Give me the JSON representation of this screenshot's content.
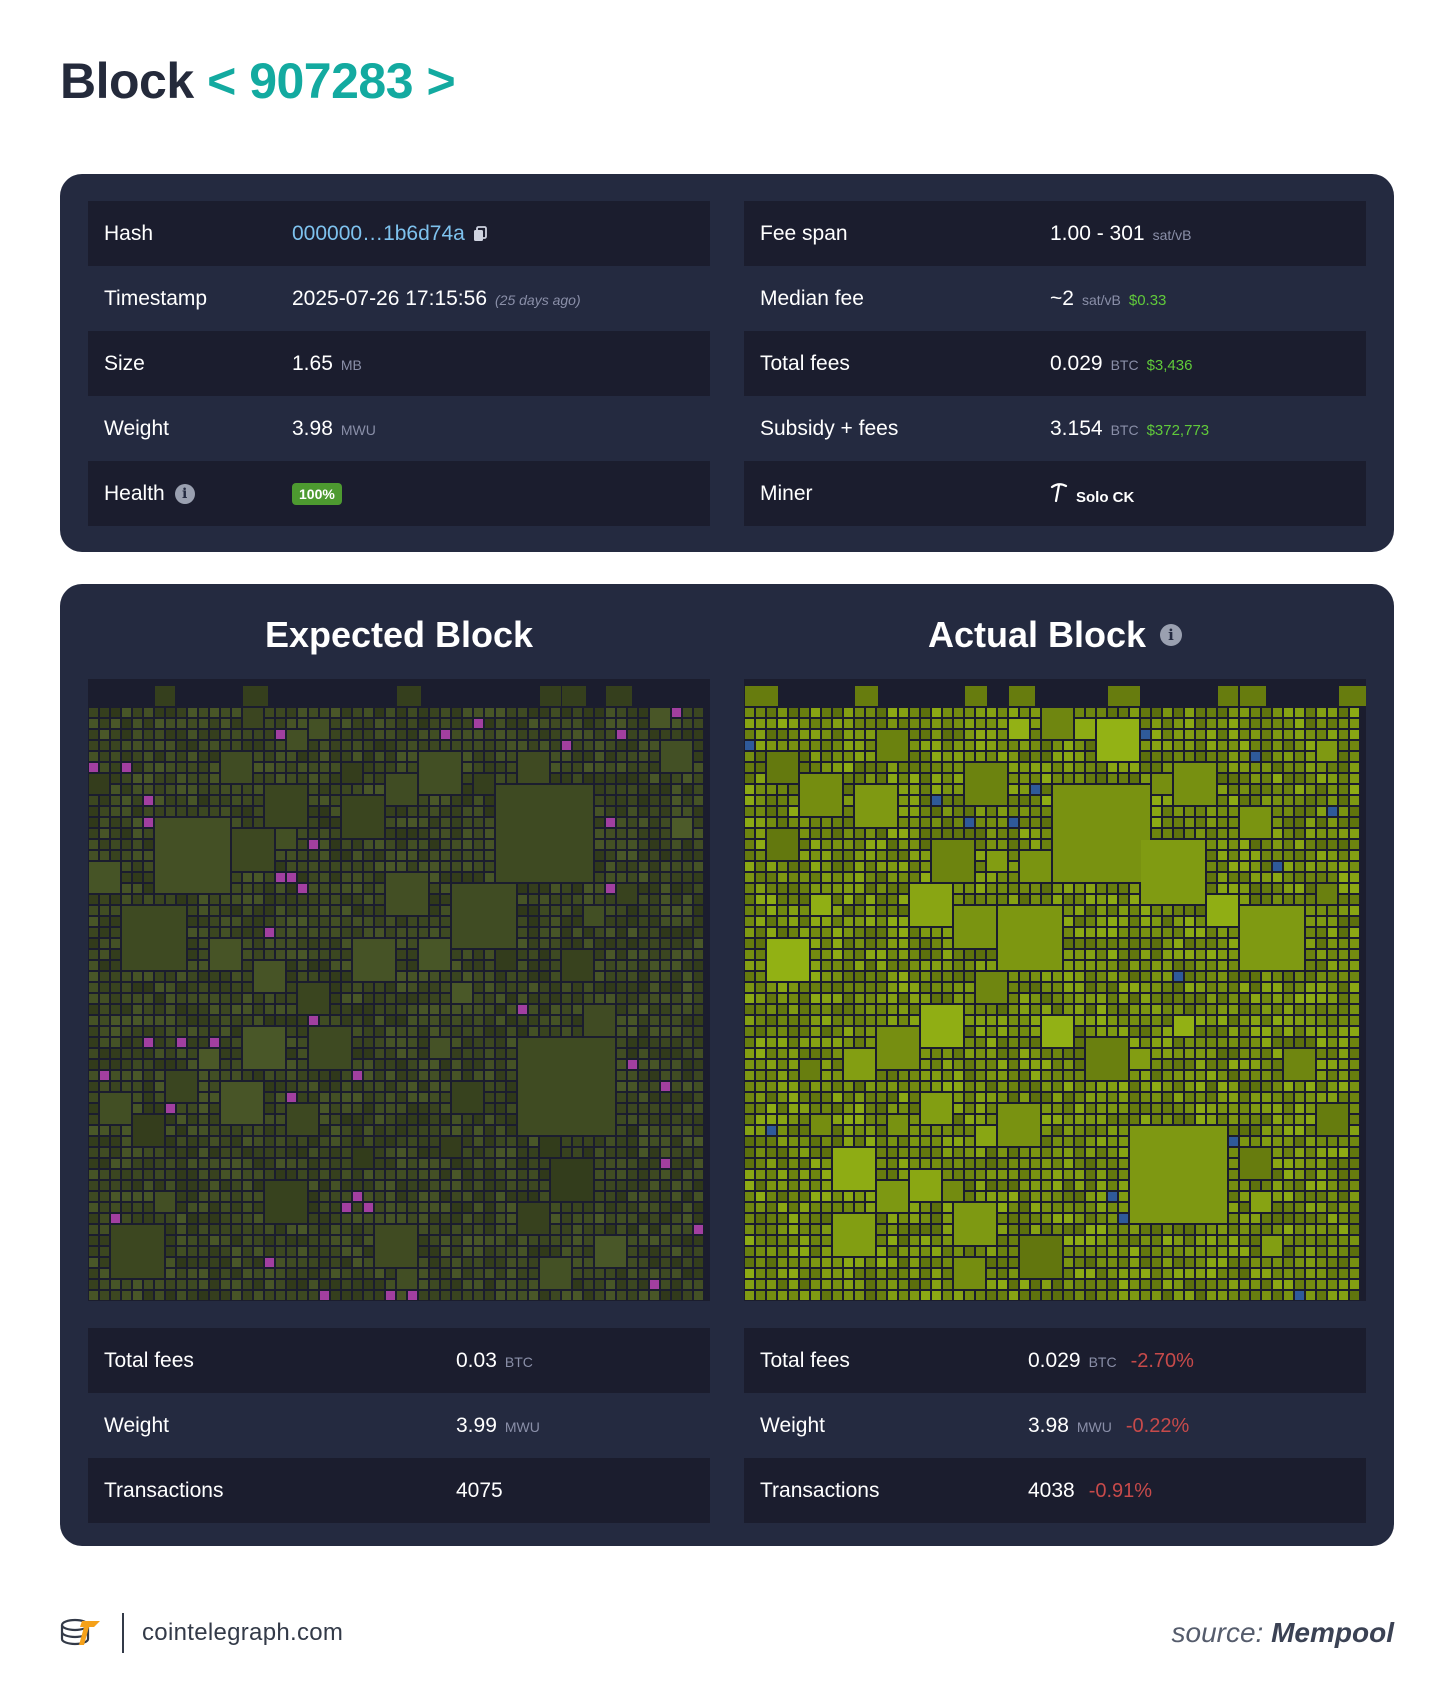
{
  "header": {
    "title": "Block",
    "prev": "<",
    "block_number": "907283",
    "next": ">"
  },
  "info": {
    "left": [
      {
        "key": "Hash",
        "value": "000000…1b6d74a",
        "icon": "copy-icon"
      },
      {
        "key": "Timestamp",
        "value": "2025-07-26 17:15:56",
        "ago": "(25 days ago)"
      },
      {
        "key": "Size",
        "value": "1.65",
        "unit": "MB"
      },
      {
        "key": "Weight",
        "value": "3.98",
        "unit": "MWU"
      },
      {
        "key": "Health",
        "icon": "info-icon",
        "badge": "100%"
      }
    ],
    "right": [
      {
        "key": "Fee span",
        "value": "1.00 - 301",
        "unit": "sat/vB"
      },
      {
        "key": "Median fee",
        "value": "~2",
        "unit": "sat/vB",
        "fiat": "$0.33"
      },
      {
        "key": "Total fees",
        "value": "0.029",
        "unit": "BTC",
        "fiat": "$3,436"
      },
      {
        "key": "Subsidy + fees",
        "value": "3.154",
        "unit": "BTC",
        "fiat": "$372,773"
      },
      {
        "key": "Miner",
        "value": "Solo CK",
        "icon": "pickaxe-icon"
      }
    ]
  },
  "expected": {
    "title": "Expected Block",
    "stats": [
      {
        "key": "Total fees",
        "value": "0.03",
        "unit": "BTC",
        "delta": ""
      },
      {
        "key": "Weight",
        "value": "3.99",
        "unit": "MWU",
        "delta": ""
      },
      {
        "key": "Transactions",
        "value": "4075",
        "unit": "",
        "delta": ""
      }
    ]
  },
  "actual": {
    "title": "Actual Block",
    "stats": [
      {
        "key": "Total fees",
        "value": "0.029",
        "unit": "BTC",
        "delta": "-2.70%"
      },
      {
        "key": "Weight",
        "value": "3.98",
        "unit": "MWU",
        "delta": "-0.22%"
      },
      {
        "key": "Transactions",
        "value": "4038",
        "unit": "",
        "delta": "-0.91%"
      }
    ]
  },
  "colors": {
    "panel": "#242a40",
    "row_dark": "#1b1d2e",
    "accent": "#13aaa0",
    "link": "#7ec2ee",
    "fiat": "#60c93a",
    "negative": "#c74a4a",
    "expected_tx": "#3b4620",
    "expected_highlight": "#a23fa0",
    "actual_tx": "#728a10",
    "actual_highlight": "#2f5a9a"
  },
  "footer": {
    "site": "cointelegraph.com",
    "source_prefix": "source:",
    "source_name": "Mempool"
  }
}
